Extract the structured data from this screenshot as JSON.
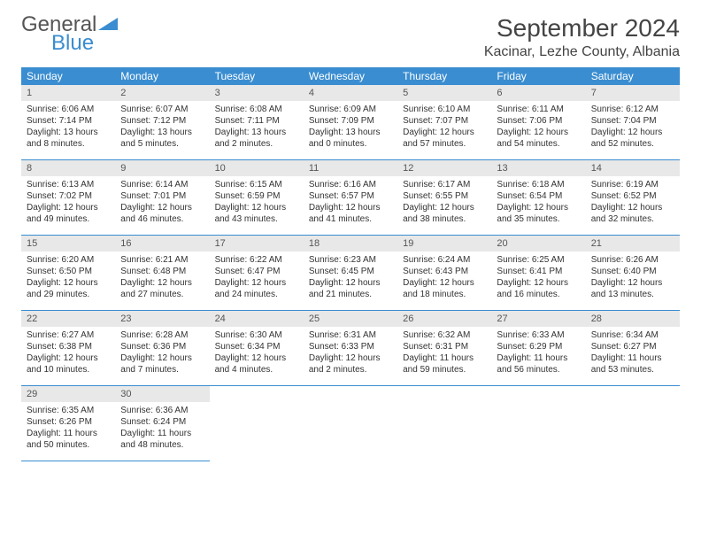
{
  "logo": {
    "text1": "General",
    "text2": "Blue"
  },
  "title": "September 2024",
  "location": "Kacinar, Lezhe County, Albania",
  "header_color": "#3a8dd0",
  "daynum_bg": "#e8e8e8",
  "weekdays": [
    "Sunday",
    "Monday",
    "Tuesday",
    "Wednesday",
    "Thursday",
    "Friday",
    "Saturday"
  ],
  "days": [
    {
      "n": "1",
      "sr": "6:06 AM",
      "ss": "7:14 PM",
      "dl": "13 hours and 8 minutes."
    },
    {
      "n": "2",
      "sr": "6:07 AM",
      "ss": "7:12 PM",
      "dl": "13 hours and 5 minutes."
    },
    {
      "n": "3",
      "sr": "6:08 AM",
      "ss": "7:11 PM",
      "dl": "13 hours and 2 minutes."
    },
    {
      "n": "4",
      "sr": "6:09 AM",
      "ss": "7:09 PM",
      "dl": "13 hours and 0 minutes."
    },
    {
      "n": "5",
      "sr": "6:10 AM",
      "ss": "7:07 PM",
      "dl": "12 hours and 57 minutes."
    },
    {
      "n": "6",
      "sr": "6:11 AM",
      "ss": "7:06 PM",
      "dl": "12 hours and 54 minutes."
    },
    {
      "n": "7",
      "sr": "6:12 AM",
      "ss": "7:04 PM",
      "dl": "12 hours and 52 minutes."
    },
    {
      "n": "8",
      "sr": "6:13 AM",
      "ss": "7:02 PM",
      "dl": "12 hours and 49 minutes."
    },
    {
      "n": "9",
      "sr": "6:14 AM",
      "ss": "7:01 PM",
      "dl": "12 hours and 46 minutes."
    },
    {
      "n": "10",
      "sr": "6:15 AM",
      "ss": "6:59 PM",
      "dl": "12 hours and 43 minutes."
    },
    {
      "n": "11",
      "sr": "6:16 AM",
      "ss": "6:57 PM",
      "dl": "12 hours and 41 minutes."
    },
    {
      "n": "12",
      "sr": "6:17 AM",
      "ss": "6:55 PM",
      "dl": "12 hours and 38 minutes."
    },
    {
      "n": "13",
      "sr": "6:18 AM",
      "ss": "6:54 PM",
      "dl": "12 hours and 35 minutes."
    },
    {
      "n": "14",
      "sr": "6:19 AM",
      "ss": "6:52 PM",
      "dl": "12 hours and 32 minutes."
    },
    {
      "n": "15",
      "sr": "6:20 AM",
      "ss": "6:50 PM",
      "dl": "12 hours and 29 minutes."
    },
    {
      "n": "16",
      "sr": "6:21 AM",
      "ss": "6:48 PM",
      "dl": "12 hours and 27 minutes."
    },
    {
      "n": "17",
      "sr": "6:22 AM",
      "ss": "6:47 PM",
      "dl": "12 hours and 24 minutes."
    },
    {
      "n": "18",
      "sr": "6:23 AM",
      "ss": "6:45 PM",
      "dl": "12 hours and 21 minutes."
    },
    {
      "n": "19",
      "sr": "6:24 AM",
      "ss": "6:43 PM",
      "dl": "12 hours and 18 minutes."
    },
    {
      "n": "20",
      "sr": "6:25 AM",
      "ss": "6:41 PM",
      "dl": "12 hours and 16 minutes."
    },
    {
      "n": "21",
      "sr": "6:26 AM",
      "ss": "6:40 PM",
      "dl": "12 hours and 13 minutes."
    },
    {
      "n": "22",
      "sr": "6:27 AM",
      "ss": "6:38 PM",
      "dl": "12 hours and 10 minutes."
    },
    {
      "n": "23",
      "sr": "6:28 AM",
      "ss": "6:36 PM",
      "dl": "12 hours and 7 minutes."
    },
    {
      "n": "24",
      "sr": "6:30 AM",
      "ss": "6:34 PM",
      "dl": "12 hours and 4 minutes."
    },
    {
      "n": "25",
      "sr": "6:31 AM",
      "ss": "6:33 PM",
      "dl": "12 hours and 2 minutes."
    },
    {
      "n": "26",
      "sr": "6:32 AM",
      "ss": "6:31 PM",
      "dl": "11 hours and 59 minutes."
    },
    {
      "n": "27",
      "sr": "6:33 AM",
      "ss": "6:29 PM",
      "dl": "11 hours and 56 minutes."
    },
    {
      "n": "28",
      "sr": "6:34 AM",
      "ss": "6:27 PM",
      "dl": "11 hours and 53 minutes."
    },
    {
      "n": "29",
      "sr": "6:35 AM",
      "ss": "6:26 PM",
      "dl": "11 hours and 50 minutes."
    },
    {
      "n": "30",
      "sr": "6:36 AM",
      "ss": "6:24 PM",
      "dl": "11 hours and 48 minutes."
    }
  ],
  "labels": {
    "sunrise": "Sunrise: ",
    "sunset": "Sunset: ",
    "daylight": "Daylight: "
  }
}
